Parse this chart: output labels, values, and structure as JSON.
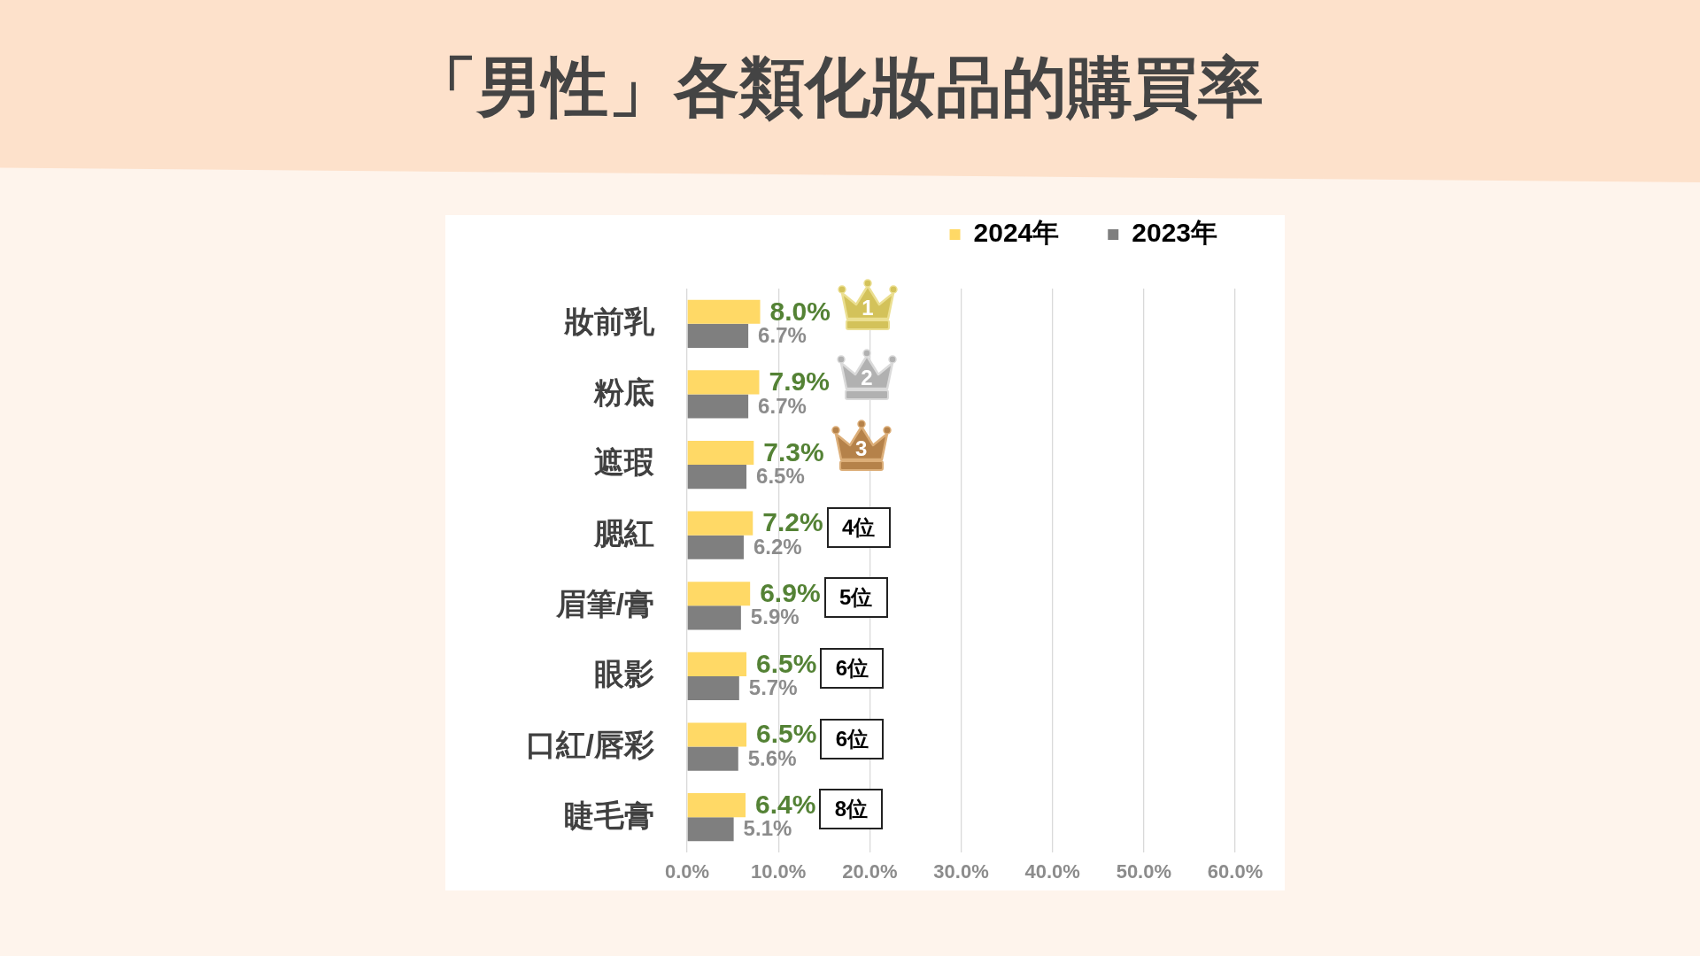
{
  "chart_data": {
    "type": "bar",
    "orientation": "horizontal",
    "title": "「男性」各類化妝品的購買率",
    "categories": [
      "妝前乳",
      "粉底",
      "遮瑕",
      "腮紅",
      "眉筆/膏",
      "眼影",
      "口紅/唇彩",
      "睫毛膏"
    ],
    "series": [
      {
        "name": "2024年",
        "color": "#ffd966",
        "values": [
          8.0,
          7.9,
          7.3,
          7.2,
          6.9,
          6.5,
          6.5,
          6.4
        ],
        "value_labels": [
          "8.0%",
          "7.9%",
          "7.3%",
          "7.2%",
          "6.9%",
          "6.5%",
          "6.5%",
          "6.4%"
        ]
      },
      {
        "name": "2023年",
        "color": "#7f7f7f",
        "values": [
          6.7,
          6.7,
          6.5,
          6.2,
          5.9,
          5.7,
          5.6,
          5.1
        ],
        "value_labels": [
          "6.7%",
          "6.7%",
          "6.5%",
          "6.2%",
          "5.9%",
          "5.7%",
          "5.6%",
          "5.1%"
        ]
      }
    ],
    "xlim": [
      0,
      60
    ],
    "xticks": [
      {
        "value": 0,
        "label": "0.0%"
      },
      {
        "value": 10,
        "label": "10.0%"
      },
      {
        "value": 20,
        "label": "20.0%"
      },
      {
        "value": 30,
        "label": "30.0%"
      },
      {
        "value": 40,
        "label": "40.0%"
      },
      {
        "value": 50,
        "label": "50.0%"
      },
      {
        "value": 60,
        "label": "60.0%"
      }
    ],
    "grid": "x",
    "legend": "top right",
    "annotations": [
      "1",
      "2",
      "3",
      "4位",
      "5位",
      "6位",
      "6位",
      "8位"
    ]
  }
}
